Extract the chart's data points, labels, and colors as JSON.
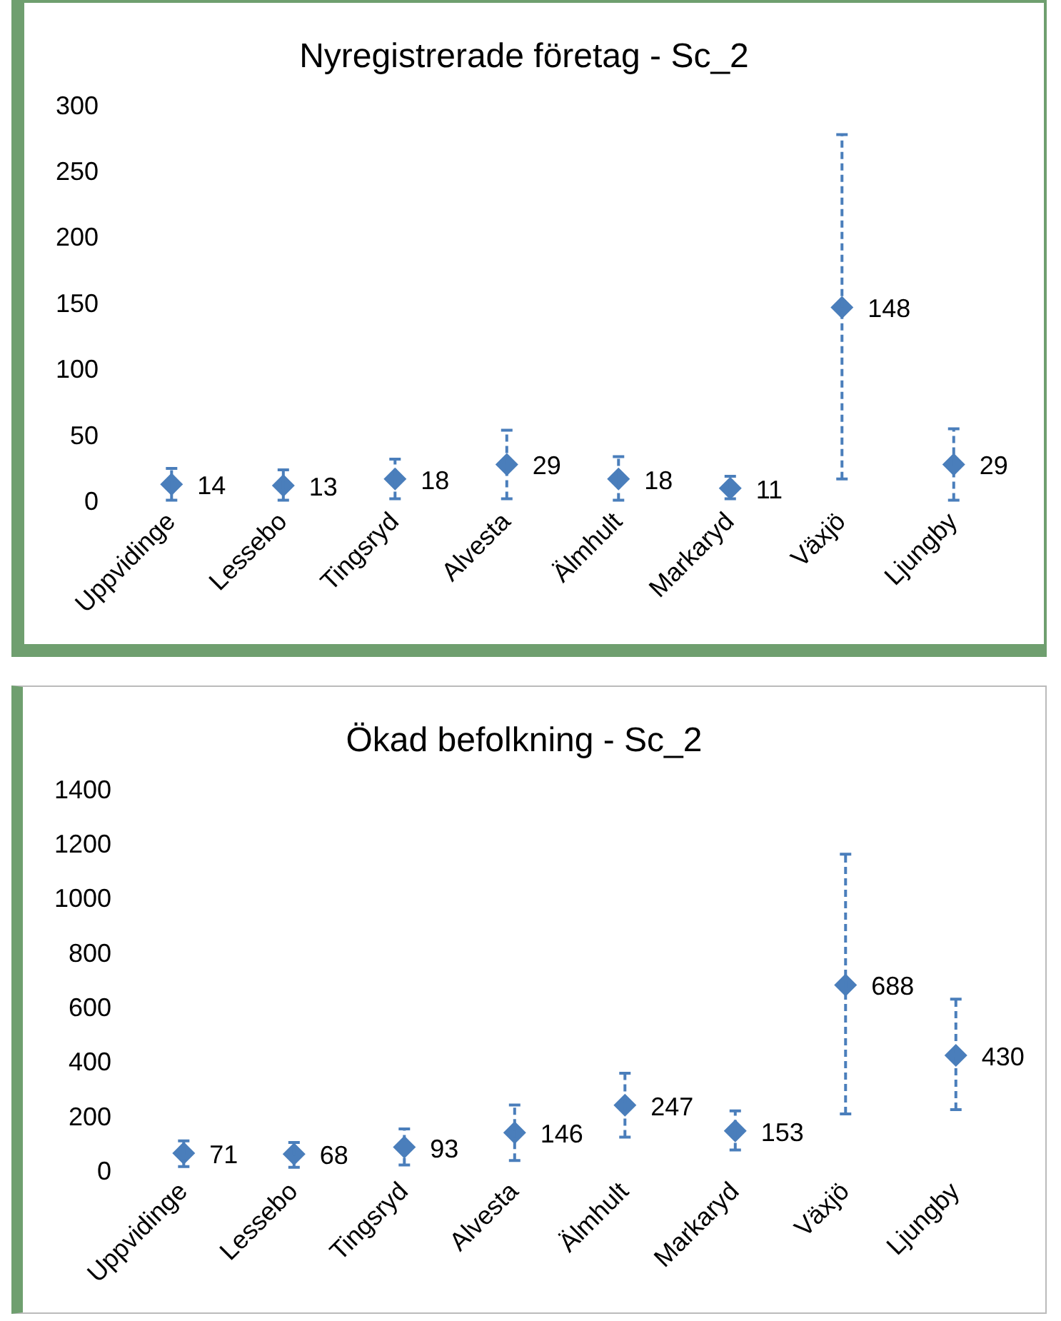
{
  "chart_data": [
    {
      "type": "scatter",
      "title": "Nyregistrerade företag - Sc_2",
      "categories": [
        "Uppvidinge",
        "Lessebo",
        "Tingsryd",
        "Alvesta",
        "Älmhult",
        "Markaryd",
        "Växjö",
        "Ljungby"
      ],
      "series": [
        {
          "color": "#4a7ebb",
          "values": [
            14,
            13,
            18,
            29,
            18,
            11,
            148,
            29
          ],
          "errors": [
            [
              2,
              26
            ],
            [
              2,
              25
            ],
            [
              3,
              33
            ],
            [
              3,
              55
            ],
            [
              2,
              35
            ],
            [
              3,
              20
            ],
            [
              18,
              279
            ],
            [
              2,
              56
            ]
          ]
        }
      ],
      "ylim": [
        0,
        300
      ],
      "yticks": [
        0,
        50,
        100,
        150,
        200,
        250,
        300
      ],
      "data_labels": true,
      "marker": "diamond",
      "grid": false,
      "legend": false
    },
    {
      "type": "scatter",
      "title": "Ökad befolkning - Sc_2",
      "categories": [
        "Uppvidinge",
        "Lessebo",
        "Tingsryd",
        "Alvesta",
        "Älmhult",
        "Markaryd",
        "Växjö",
        "Ljungby"
      ],
      "series": [
        {
          "color": "#4a7ebb",
          "values": [
            71,
            68,
            93,
            146,
            247,
            153,
            688,
            430
          ],
          "errors": [
            [
              22,
              116
            ],
            [
              19,
              110
            ],
            [
              28,
              160
            ],
            [
              44,
              248
            ],
            [
              130,
              364
            ],
            [
              83,
              226
            ],
            [
              215,
              1168
            ],
            [
              231,
              636
            ]
          ]
        }
      ],
      "ylim": [
        0,
        1400
      ],
      "yticks": [
        0,
        200,
        400,
        600,
        800,
        1000,
        1200,
        1400
      ],
      "data_labels": true,
      "marker": "diamond",
      "grid": false,
      "legend": false
    }
  ]
}
